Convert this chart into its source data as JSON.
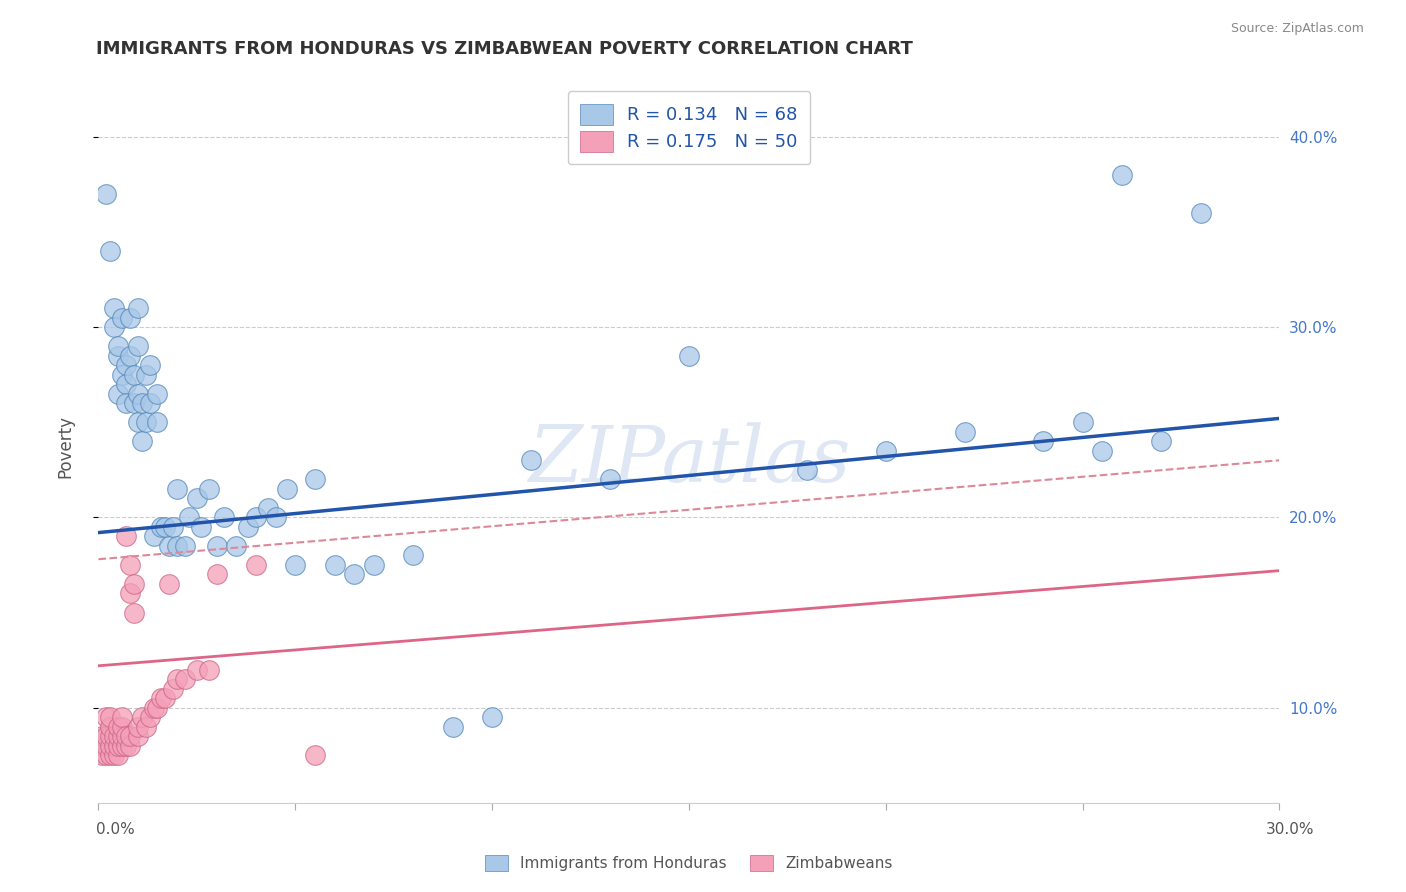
{
  "title": "IMMIGRANTS FROM HONDURAS VS ZIMBABWEAN POVERTY CORRELATION CHART",
  "source": "Source: ZipAtlas.com",
  "ylabel": "Poverty",
  "xlim": [
    0.0,
    0.3
  ],
  "ylim": [
    0.05,
    0.425
  ],
  "yticks": [
    0.1,
    0.2,
    0.3,
    0.4
  ],
  "ytick_labels": [
    "10.0%",
    "20.0%",
    "30.0%",
    "40.0%"
  ],
  "ytick_right_labels": [
    "10.0%",
    "20.0%",
    "30.0%",
    "40.0%"
  ],
  "xticks": [
    0.0,
    0.05,
    0.1,
    0.15,
    0.2,
    0.25,
    0.3
  ],
  "blue_R": 0.134,
  "blue_N": 68,
  "pink_R": 0.175,
  "pink_N": 50,
  "blue_color": "#a8c8e8",
  "pink_color": "#f4a0b8",
  "blue_edge_color": "#5588bb",
  "pink_edge_color": "#cc6688",
  "blue_line_color": "#2255aa",
  "pink_line_color": "#dd6688",
  "dashed_line_color": "#dd8899",
  "watermark": "ZIPatlas",
  "legend_label_blue": "Immigrants from Honduras",
  "legend_label_pink": "Zimbabweans",
  "blue_line_y0": 0.192,
  "blue_line_y1": 0.252,
  "pink_line_y0": 0.122,
  "pink_line_y1": 0.172,
  "dashed_line_y0": 0.178,
  "dashed_line_y1": 0.23,
  "blue_scatter_x": [
    0.002,
    0.003,
    0.004,
    0.004,
    0.005,
    0.005,
    0.005,
    0.006,
    0.006,
    0.007,
    0.007,
    0.007,
    0.008,
    0.008,
    0.009,
    0.009,
    0.01,
    0.01,
    0.01,
    0.01,
    0.011,
    0.011,
    0.012,
    0.012,
    0.013,
    0.013,
    0.014,
    0.015,
    0.015,
    0.016,
    0.017,
    0.018,
    0.019,
    0.02,
    0.02,
    0.022,
    0.023,
    0.025,
    0.026,
    0.028,
    0.03,
    0.032,
    0.035,
    0.038,
    0.04,
    0.043,
    0.045,
    0.048,
    0.05,
    0.055,
    0.06,
    0.065,
    0.07,
    0.08,
    0.09,
    0.1,
    0.11,
    0.13,
    0.15,
    0.18,
    0.2,
    0.22,
    0.24,
    0.25,
    0.255,
    0.26,
    0.27,
    0.28
  ],
  "blue_scatter_y": [
    0.37,
    0.34,
    0.3,
    0.31,
    0.265,
    0.285,
    0.29,
    0.275,
    0.305,
    0.27,
    0.26,
    0.28,
    0.285,
    0.305,
    0.26,
    0.275,
    0.25,
    0.265,
    0.29,
    0.31,
    0.24,
    0.26,
    0.25,
    0.275,
    0.26,
    0.28,
    0.19,
    0.25,
    0.265,
    0.195,
    0.195,
    0.185,
    0.195,
    0.185,
    0.215,
    0.185,
    0.2,
    0.21,
    0.195,
    0.215,
    0.185,
    0.2,
    0.185,
    0.195,
    0.2,
    0.205,
    0.2,
    0.215,
    0.175,
    0.22,
    0.175,
    0.17,
    0.175,
    0.18,
    0.09,
    0.095,
    0.23,
    0.22,
    0.285,
    0.225,
    0.235,
    0.245,
    0.24,
    0.25,
    0.235,
    0.38,
    0.24,
    0.36
  ],
  "pink_scatter_x": [
    0.001,
    0.001,
    0.001,
    0.002,
    0.002,
    0.002,
    0.002,
    0.003,
    0.003,
    0.003,
    0.003,
    0.003,
    0.004,
    0.004,
    0.004,
    0.005,
    0.005,
    0.005,
    0.005,
    0.006,
    0.006,
    0.006,
    0.006,
    0.007,
    0.007,
    0.007,
    0.008,
    0.008,
    0.008,
    0.008,
    0.009,
    0.009,
    0.01,
    0.01,
    0.011,
    0.012,
    0.013,
    0.014,
    0.015,
    0.016,
    0.017,
    0.018,
    0.019,
    0.02,
    0.022,
    0.025,
    0.028,
    0.03,
    0.04,
    0.055
  ],
  "pink_scatter_y": [
    0.075,
    0.08,
    0.085,
    0.075,
    0.08,
    0.085,
    0.095,
    0.075,
    0.08,
    0.085,
    0.09,
    0.095,
    0.075,
    0.08,
    0.085,
    0.075,
    0.08,
    0.085,
    0.09,
    0.08,
    0.085,
    0.09,
    0.095,
    0.08,
    0.085,
    0.19,
    0.08,
    0.085,
    0.16,
    0.175,
    0.15,
    0.165,
    0.085,
    0.09,
    0.095,
    0.09,
    0.095,
    0.1,
    0.1,
    0.105,
    0.105,
    0.165,
    0.11,
    0.115,
    0.115,
    0.12,
    0.12,
    0.17,
    0.175,
    0.075
  ],
  "background_color": "#ffffff",
  "grid_color": "#cccccc"
}
